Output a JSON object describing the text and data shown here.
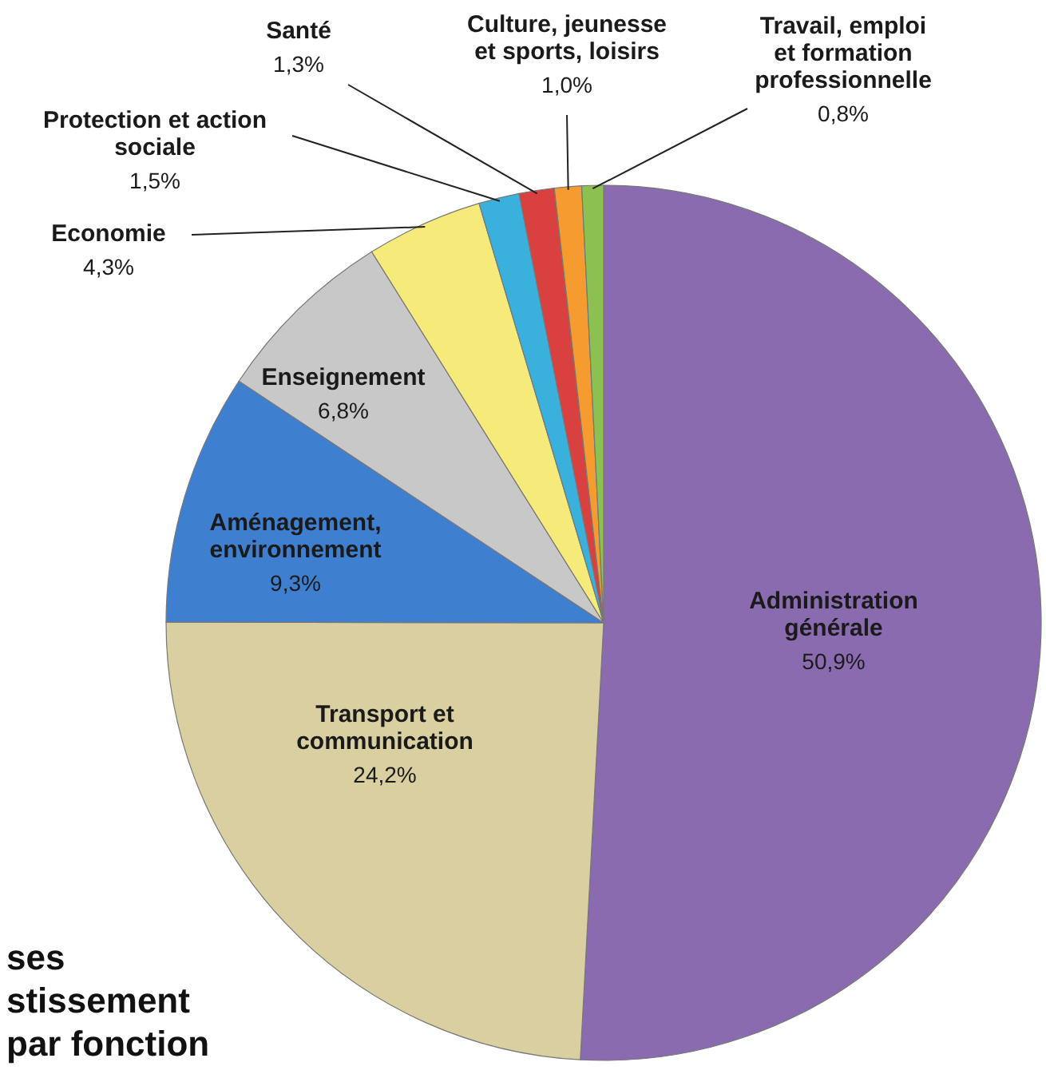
{
  "chart_data": {
    "type": "pie",
    "categories": [
      "Administration générale",
      "Transport et communication",
      "Aménagement, environnement",
      "Enseignement",
      "Economie",
      "Protection et action sociale",
      "Santé",
      "Culture, jeunesse et sports, loisirs",
      "Travail, emploi et formation professionnelle"
    ],
    "values": [
      50.9,
      24.2,
      9.3,
      6.8,
      4.3,
      1.5,
      1.3,
      1.0,
      0.8
    ],
    "value_labels": [
      "50,9%",
      "24,2%",
      "9,3%",
      "6,8%",
      "4,3%",
      "1,5%",
      "1,3%",
      "1,0%",
      "0,8%"
    ],
    "colors": [
      "#8b6bb0",
      "#d9cfa0",
      "#3f7fd0",
      "#c8c8c8",
      "#f5ea7a",
      "#3ab0dd",
      "#d94040",
      "#f59b30",
      "#8cc050"
    ],
    "annotations": [
      "ses",
      "stissement",
      "par fonction"
    ]
  }
}
